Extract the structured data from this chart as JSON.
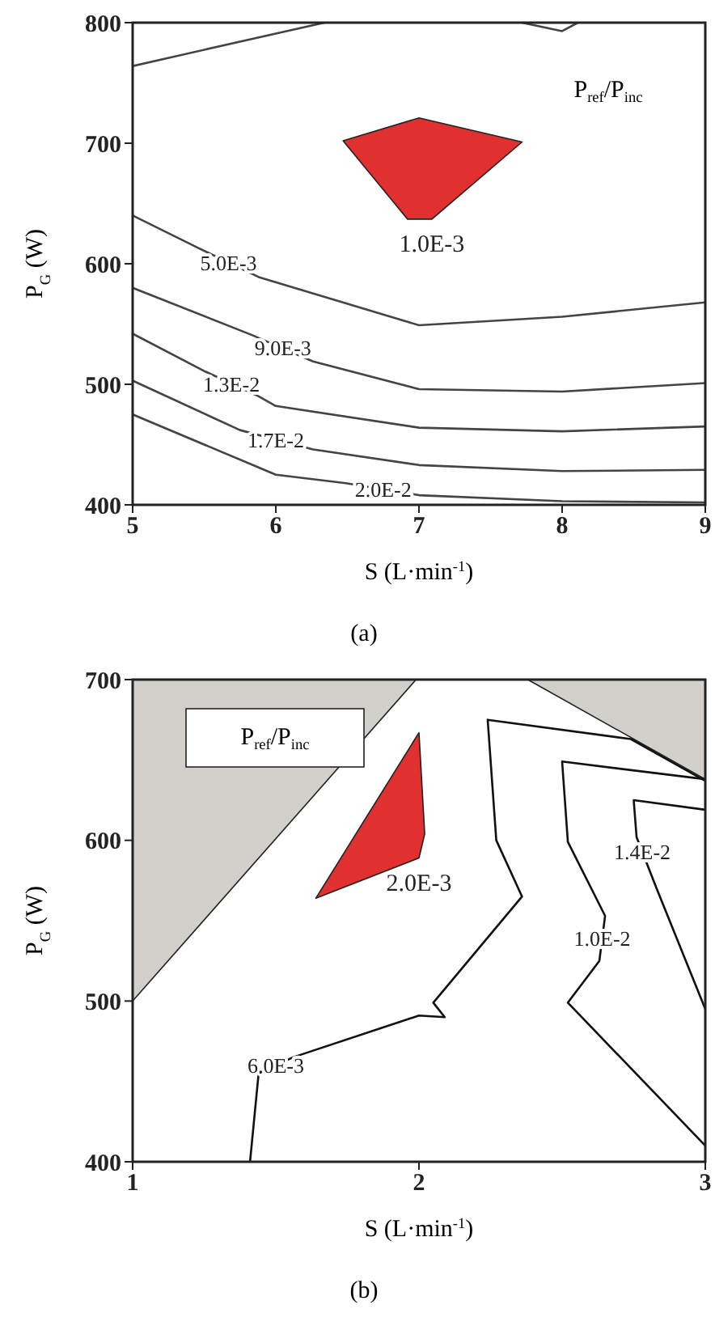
{
  "chart_data": [
    {
      "type": "line",
      "xlabel": "S (L·min$^{-1}$)",
      "ylabel": "P$_{G}$ (W)",
      "legend_title": "P$_{ref}$/P$_{inc}$",
      "marker": "none",
      "xlim": [
        5,
        9
      ],
      "ylim": [
        400,
        800
      ],
      "xticks": [
        5,
        6,
        7,
        8,
        9
      ],
      "yticks": [
        400,
        500,
        600,
        700,
        800
      ],
      "series": [
        {
          "type": "area",
          "name": "1.0E-3",
          "color": "#e03030",
          "x": [
            6.92,
            6.47,
            7.0,
            7.72,
            7.09
          ],
          "values": [
            637,
            702,
            721,
            701,
            637
          ]
        },
        {
          "color": "#444444",
          "x": [
            5,
            6,
            6.34
          ],
          "values": [
            764,
            791,
            800
          ]
        },
        {
          "color": "#444444",
          "x": [
            7.72,
            8.0,
            8.11
          ],
          "values": [
            800,
            793,
            800
          ]
        },
        {
          "color": "#444444",
          "x": [
            5,
            5.46,
            5.88,
            7,
            8,
            9
          ],
          "values": [
            640,
            613,
            589,
            549,
            556,
            568
          ]
        },
        {
          "color": "#444444",
          "x": [
            5,
            5.83,
            6.26,
            7,
            8,
            9
          ],
          "values": [
            580,
            541,
            519,
            496,
            494,
            501
          ]
        },
        {
          "color": "#444444",
          "x": [
            5,
            5.5,
            5.88,
            6,
            7,
            8,
            9
          ],
          "values": [
            542,
            511,
            490,
            482,
            464,
            461,
            465
          ]
        },
        {
          "color": "#444444",
          "x": [
            5,
            5.75,
            6.26,
            7,
            8,
            9
          ],
          "values": [
            503,
            462,
            446,
            433,
            428,
            429
          ]
        },
        {
          "color": "#444444",
          "x": [
            5,
            6.0,
            6.49,
            7.0,
            8,
            9
          ],
          "values": [
            475,
            425,
            418,
            408,
            403,
            402
          ]
        }
      ],
      "annotations": [
        {
          "text": "5.0E-3",
          "x": 5.67,
          "y": 601
        },
        {
          "text": "9.0E-3",
          "x": 6.05,
          "y": 530
        },
        {
          "text": "1.3E-2",
          "x": 5.69,
          "y": 500
        },
        {
          "text": "1.7E-2",
          "x": 6.0,
          "y": 454
        },
        {
          "text": "2.0E-2",
          "x": 6.75,
          "y": 413
        },
        "(a)"
      ]
    },
    {
      "type": "line",
      "xlabel": "S (L·min$^{-1}$)",
      "ylabel": "P$_{G}$ (W)",
      "legend_title": "P$_{ref}$/P$_{inc}$",
      "marker": "none",
      "xlim": [
        1,
        3
      ],
      "ylim": [
        400,
        700
      ],
      "xticks": [
        1,
        2,
        3
      ],
      "yticks": [
        400,
        500,
        600,
        700
      ],
      "series": [
        {
          "type": "area",
          "color": "#d3cfcb",
          "x": [
            1,
            1,
            1.99
          ],
          "values": [
            500,
            700,
            700
          ]
        },
        {
          "type": "area",
          "color": "#d3cfcb",
          "x": [
            2.38,
            3,
            3
          ],
          "values": [
            700,
            700,
            638
          ]
        },
        {
          "type": "area",
          "name": "2.0E-3",
          "color": "#e03030",
          "x": [
            1.64,
            2.0,
            2.02,
            2.0
          ],
          "values": [
            564,
            667,
            604,
            589
          ]
        },
        {
          "color": "#111111",
          "x": [
            1.41,
            1.44,
            1.56,
            2.0,
            2.09,
            2.05,
            2.36,
            2.27,
            2.24,
            2.74,
            3.0
          ],
          "values": [
            400,
            455,
            465,
            491,
            490,
            499,
            565,
            600,
            675,
            663,
            637
          ]
        },
        {
          "color": "#111111",
          "x": [
            3,
            2.5,
            2.52,
            2.65,
            2.63,
            2.52,
            3.0
          ],
          "values": [
            638,
            649,
            599,
            553,
            525,
            499,
            410
          ]
        },
        {
          "color": "#111111",
          "x": [
            3,
            2.75,
            2.76,
            2.83,
            3.0
          ],
          "values": [
            619,
            625,
            602,
            570,
            495
          ]
        }
      ],
      "annotations": [
        {
          "text": "6.0E-3",
          "x": 1.5,
          "y": 460
        },
        {
          "text": "1.0E-2",
          "x": 2.64,
          "y": 539
        },
        {
          "text": "1.4E-2",
          "x": 2.78,
          "y": 593
        },
        "(b)"
      ]
    }
  ]
}
